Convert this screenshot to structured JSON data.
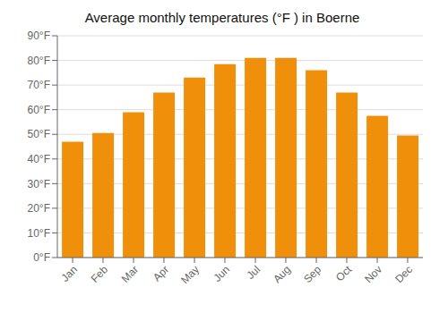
{
  "chart_data": {
    "type": "bar",
    "title": "Average monthly temperatures (°F ) in Boerne",
    "categories": [
      "Jan",
      "Feb",
      "Mar",
      "Apr",
      "May",
      "Jun",
      "Jul",
      "Aug",
      "Sep",
      "Oct",
      "Nov",
      "Dec"
    ],
    "values": [
      47,
      50.5,
      59,
      67,
      73,
      78.5,
      81,
      81,
      76,
      67,
      57.5,
      49.5
    ],
    "color": "#F0900A",
    "ylim": [
      0,
      90
    ],
    "yticks": [
      {
        "value": 0,
        "label": "0°F"
      },
      {
        "value": 10,
        "label": "10°F"
      },
      {
        "value": 20,
        "label": "20°F"
      },
      {
        "value": 30,
        "label": "30°F"
      },
      {
        "value": 40,
        "label": "40°F"
      },
      {
        "value": 50,
        "label": "50°F"
      },
      {
        "value": 60,
        "label": "60°F"
      },
      {
        "value": 70,
        "label": "70°F"
      },
      {
        "value": 80,
        "label": "80°F"
      },
      {
        "value": 90,
        "label": "90°F"
      }
    ],
    "grid": true
  }
}
